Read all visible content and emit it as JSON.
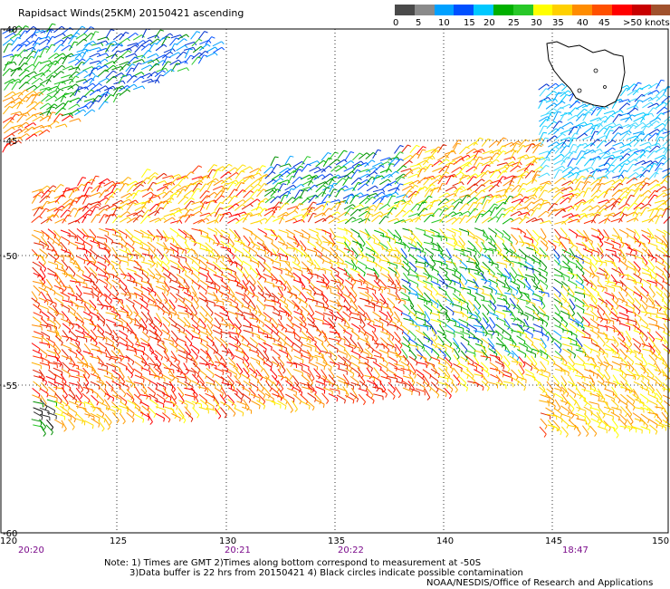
{
  "title": "Rapidsact Winds(25KM) 20150421 ascending",
  "legend": {
    "colors": [
      "#4a4a4a",
      "#8a8a8a",
      "#00a0ff",
      "#0050ff",
      "#00c8ff",
      "#00b000",
      "#28c828",
      "#ffff00",
      "#ffd000",
      "#ff8c00",
      "#ff5000",
      "#ff0000",
      "#c80000",
      "#a0522d",
      "#8b6b4a",
      "#e000e0",
      "#b000b0",
      "#7a00a0",
      "#4b0082",
      "#000000"
    ],
    "ticks": [
      "0",
      "5",
      "10",
      "15",
      "20",
      "25",
      "30",
      "35",
      "40",
      "45",
      ">50 knots"
    ]
  },
  "axes": {
    "lon_ticks": [
      "120",
      "125",
      "130",
      "135",
      "140",
      "145",
      "150"
    ],
    "lat_ticks": [
      "-40",
      "-45",
      "-50",
      "-55",
      "-60"
    ]
  },
  "times": [
    "20:20",
    "20:21",
    "20:22",
    "18:47"
  ],
  "notes": {
    "line1": "Note: 1) Times are GMT 2)Times along bottom correspond to measurement at -50S",
    "line2": "3)Data buffer is 22 hrs from 20150421 4) Black circles indicate possible contamination",
    "line3": "NOAA/NESDIS/Office of Research and Applications"
  }
}
